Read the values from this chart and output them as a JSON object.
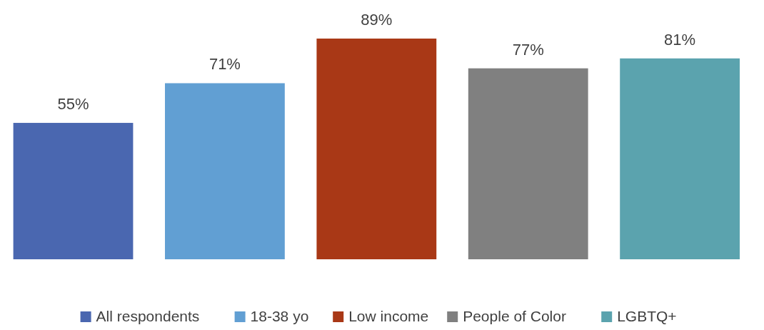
{
  "chart_data": {
    "type": "bar",
    "categories": [
      null
    ],
    "legend": "bottom",
    "series": [
      {
        "name": "All respondents",
        "color": "#4a67b0",
        "values": [
          55
        ],
        "value_labels": [
          "55%"
        ]
      },
      {
        "name": "18-38 yo",
        "color": "#619fd3",
        "values": [
          71
        ],
        "value_labels": [
          "71%"
        ]
      },
      {
        "name": "Low income",
        "color": "#a93816",
        "values": [
          89
        ],
        "value_labels": [
          "89%"
        ]
      },
      {
        "name": "People of Color",
        "color": "#808080",
        "values": [
          77
        ],
        "value_labels": [
          "77%"
        ]
      },
      {
        "name": "LGBTQ+",
        "color": "#5ba3ae",
        "values": [
          81
        ],
        "value_labels": [
          "81%"
        ]
      }
    ]
  }
}
